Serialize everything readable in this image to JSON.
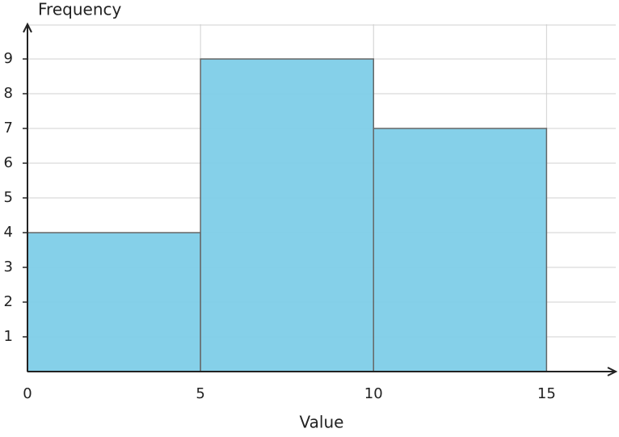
{
  "chart_data": {
    "type": "histogram",
    "x_label": "Value",
    "y_label": "Frequency",
    "bins": [
      0,
      5,
      10,
      15
    ],
    "values": [
      4,
      9,
      7
    ],
    "color": "#7ecde8",
    "xlim": [
      0,
      17
    ],
    "ylim": [
      0,
      10
    ],
    "xticks": [
      0,
      5,
      10,
      15
    ],
    "yticks": [
      1,
      2,
      3,
      4,
      5,
      6,
      7,
      8,
      9
    ],
    "grid": true
  }
}
